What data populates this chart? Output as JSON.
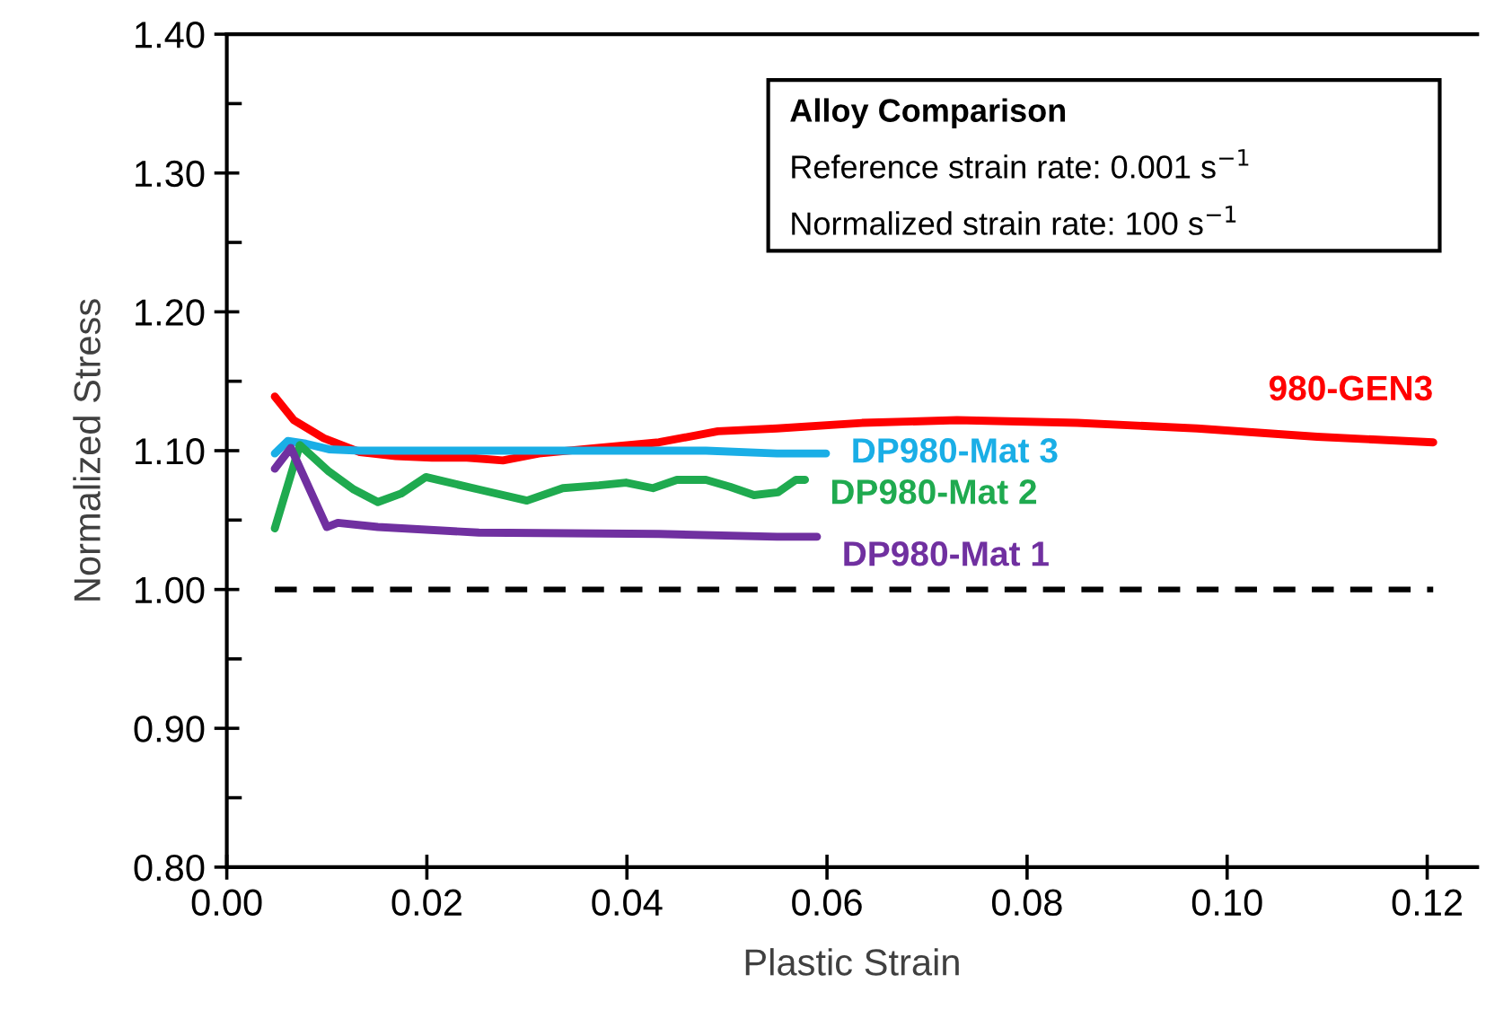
{
  "chart_data": {
    "type": "line",
    "xlabel": "Plastic Strain",
    "ylabel": "Normalized Stress",
    "xlim": [
      0,
      0.125
    ],
    "xticks": [
      {
        "value": 0,
        "label": "0.00"
      },
      {
        "value": 0.02,
        "label": "0.02"
      },
      {
        "value": 0.04,
        "label": "0.04"
      },
      {
        "value": 0.06,
        "label": "0.06"
      },
      {
        "value": 0.08,
        "label": "0.08"
      },
      {
        "value": 0.1,
        "label": "0.10"
      },
      {
        "value": 0.12,
        "label": "0.12"
      }
    ],
    "ylim": [
      0.8,
      1.4
    ],
    "yticks": [
      {
        "value": 0.8,
        "label": "0.80"
      },
      {
        "value": 0.9,
        "label": "0.90"
      },
      {
        "value": 1.0,
        "label": "1.00"
      },
      {
        "value": 1.1,
        "label": "1.10"
      },
      {
        "value": 1.2,
        "label": "1.20"
      },
      {
        "value": 1.3,
        "label": "1.30"
      },
      {
        "value": 1.4,
        "label": "1.40"
      }
    ],
    "grid": false,
    "legend": false,
    "marker": "none",
    "line_style": "solid",
    "annotations": [
      "Alloy Comparison",
      "Reference strain rate: 0.001 s$^{−1}$",
      "Normalized strain rate: 100 s$^{−1}$"
    ],
    "ref_lines": [
      {
        "axis": "y",
        "value": 1.0,
        "color": "#000000",
        "line_style": "dashed"
      }
    ],
    "series": [
      {
        "name": "980-GEN3",
        "color": "#ff0000",
        "x": [
          0.0048,
          0.0067,
          0.0097,
          0.0133,
          0.0169,
          0.0205,
          0.024,
          0.0276,
          0.0312,
          0.0371,
          0.0432,
          0.0491,
          0.055,
          0.0635,
          0.073,
          0.085,
          0.097,
          0.109,
          0.1206
        ],
        "values": [
          1.139,
          1.122,
          1.109,
          1.099,
          1.096,
          1.095,
          1.095,
          1.093,
          1.098,
          1.102,
          1.106,
          1.114,
          1.116,
          1.12,
          1.122,
          1.12,
          1.116,
          1.11,
          1.106
        ]
      },
      {
        "name": "DP980-Mat 3",
        "color": "#1aaee6",
        "x": [
          0.0048,
          0.0061,
          0.0079,
          0.0102,
          0.0133,
          0.0479,
          0.055,
          0.0599
        ],
        "values": [
          1.098,
          1.107,
          1.105,
          1.101,
          1.1,
          1.1,
          1.098,
          1.098
        ]
      },
      {
        "name": "DP980-Mat 2",
        "color": "#1faa4f",
        "x": [
          0.0048,
          0.0073,
          0.0102,
          0.0127,
          0.0151,
          0.0174,
          0.0199,
          0.0252,
          0.03,
          0.0336,
          0.0372,
          0.0399,
          0.0426,
          0.045,
          0.0479,
          0.0503,
          0.0527,
          0.0551,
          0.0569,
          0.0578
        ],
        "values": [
          1.044,
          1.104,
          1.085,
          1.072,
          1.063,
          1.069,
          1.081,
          1.072,
          1.064,
          1.073,
          1.075,
          1.077,
          1.073,
          1.079,
          1.079,
          1.074,
          1.068,
          1.07,
          1.079,
          1.079
        ]
      },
      {
        "name": "DP980-Mat 1",
        "color": "#7030a0",
        "x": [
          0.0048,
          0.0064,
          0.01,
          0.0111,
          0.0151,
          0.0252,
          0.0432,
          0.055,
          0.059
        ],
        "values": [
          1.087,
          1.102,
          1.045,
          1.048,
          1.045,
          1.041,
          1.04,
          1.038,
          1.038
        ]
      }
    ]
  }
}
